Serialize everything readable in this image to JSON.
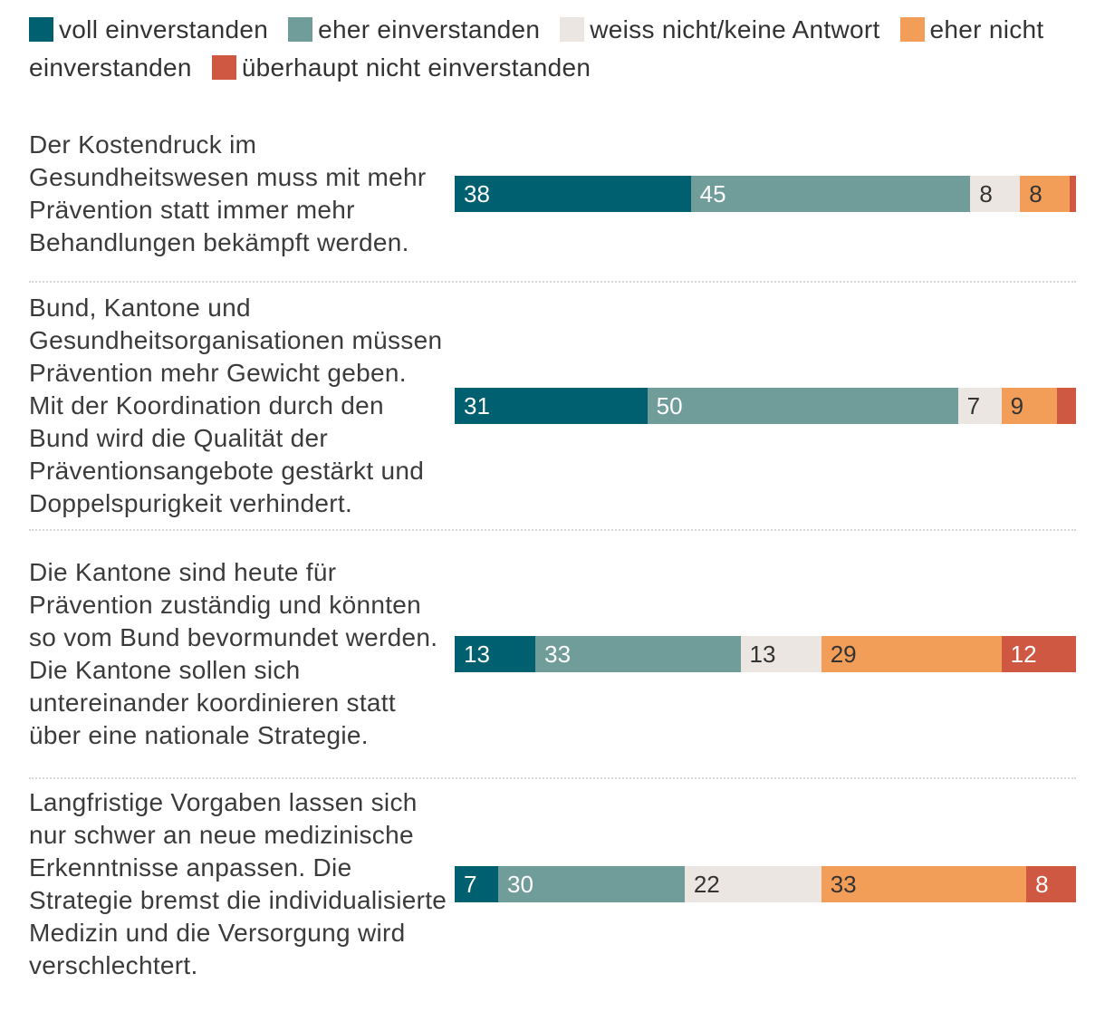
{
  "legend": [
    {
      "label": "voll einverstanden",
      "color": "#00606f"
    },
    {
      "label": "eher einverstanden",
      "color": "#709c9a"
    },
    {
      "label": "weiss nicht/keine Antwort",
      "color": "#ebe6e2"
    },
    {
      "label": "eher nicht einverstanden",
      "color": "#f29e58"
    },
    {
      "label": "überhaupt nicht einverstanden",
      "color": "#cf5843"
    }
  ],
  "chart_data": {
    "type": "bar",
    "orientation": "horizontal",
    "stacked": true,
    "categories": [
      "Der Kostendruck im Gesundheitswesen muss mit mehr Prävention statt immer mehr Behandlungen bekämpft werden.",
      "Bund, Kantone und Gesundheitsorganisationen müssen Prävention mehr Gewicht geben. Mit der Koordination durch den Bund wird die Qualität der Präventionsangebote gestärkt und Doppelspurigkeit verhindert.",
      "Die Kantone sind heute für Prävention zuständig und könnten so vom Bund bevormundet werden. Die Kantone sollen sich untereinander koordinieren statt über eine nationale Strategie.",
      "Langfristige Vorgaben lassen sich nur schwer an neue medizinische Erkenntnisse anpassen. Die Strategie bremst die individualisierte Medizin und die Versorgung wird verschlechtert."
    ],
    "series": [
      {
        "name": "voll einverstanden",
        "color": "#00606f",
        "text_color": "#ffffff",
        "values": [
          38,
          31,
          13,
          7
        ],
        "labels": [
          "38",
          "31",
          "13",
          "7"
        ]
      },
      {
        "name": "eher einverstanden",
        "color": "#709c9a",
        "text_color": "#ffffff",
        "values": [
          45,
          50,
          33,
          30
        ],
        "labels": [
          "45",
          "50",
          "33",
          "30"
        ]
      },
      {
        "name": "weiss nicht/keine Antwort",
        "color": "#ebe6e2",
        "text_color": "#333333",
        "values": [
          8,
          7,
          13,
          22
        ],
        "labels": [
          "8",
          "7",
          "13",
          "22"
        ]
      },
      {
        "name": "eher nicht einverstanden",
        "color": "#f29e58",
        "text_color": "#333333",
        "values": [
          8,
          9,
          29,
          33
        ],
        "labels": [
          "8",
          "9",
          "29",
          "33"
        ]
      },
      {
        "name": "überhaupt nicht einverstanden",
        "color": "#cf5843",
        "text_color": "#ffffff",
        "values": [
          1,
          3,
          12,
          8
        ],
        "labels": [
          "",
          "",
          "12",
          "8"
        ]
      }
    ],
    "xlim": [
      0,
      100
    ],
    "unit": "%"
  }
}
